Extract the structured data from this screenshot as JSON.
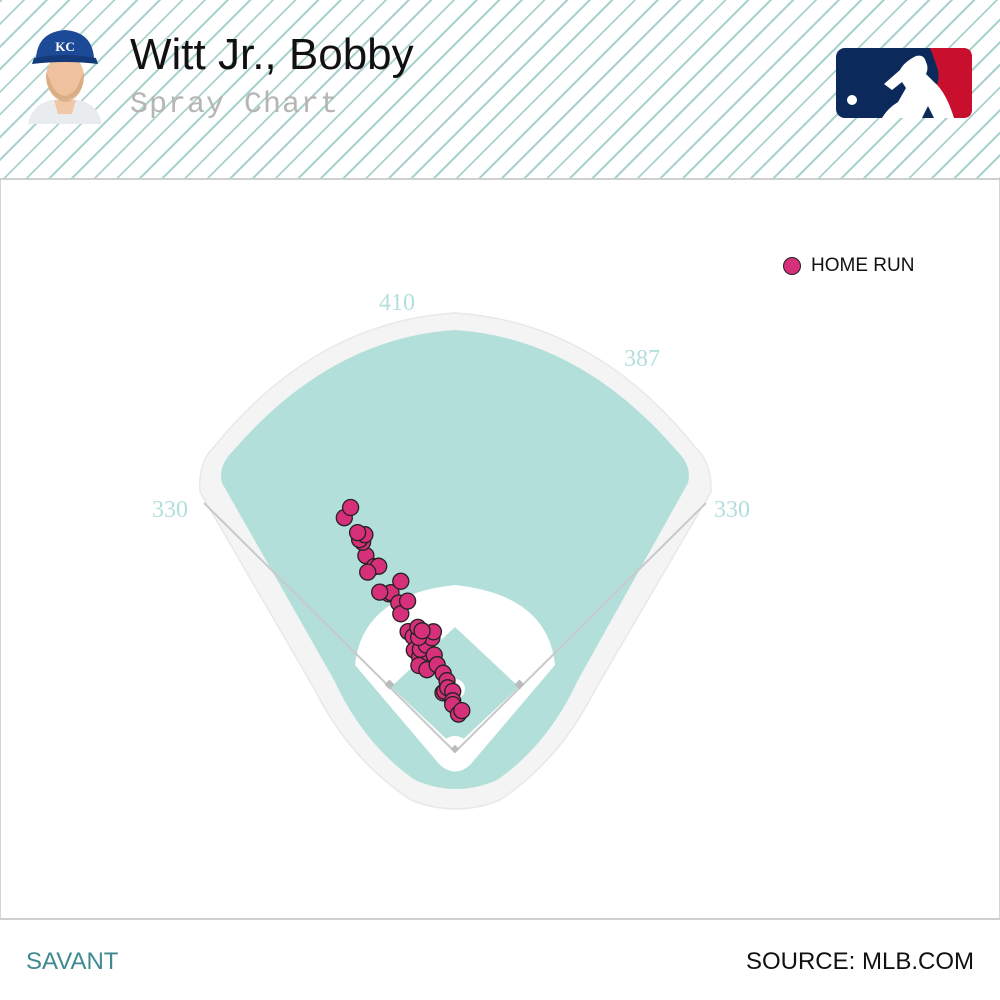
{
  "header": {
    "player_name": "Witt Jr., Bobby",
    "subtitle": "Spray Chart",
    "team_cap_letters": "KC",
    "logo": "mlb-logo"
  },
  "legend": {
    "label": "HOME RUN",
    "color": "#d6307a"
  },
  "field": {
    "distances": {
      "left": "330",
      "left_center": "",
      "center": "410",
      "right_center": "387",
      "right": "330"
    },
    "colors": {
      "turf": "#b3dfdb",
      "dirt_outline": "#ededed",
      "warning_track": "#f4f4f4"
    }
  },
  "chart_data": {
    "type": "scatter",
    "title": "Spray Chart",
    "series": [
      {
        "name": "HOME RUN",
        "color": "#d6307a"
      }
    ],
    "points_pct": [
      [
        -44.1,
        29.5
      ],
      [
        -35.5,
        25.6
      ],
      [
        -32.2,
        24.9
      ],
      [
        -30.4,
        26.1
      ],
      [
        -26.4,
        21.9
      ],
      [
        -25.5,
        22.7
      ],
      [
        -22.4,
        22.1
      ],
      [
        -21.6,
        20.0
      ],
      [
        -18.7,
        17.5
      ],
      [
        -16.7,
        17.5
      ],
      [
        -16.2,
        14.6
      ],
      [
        -14.1,
        14.2
      ],
      [
        -13.8,
        16.2
      ],
      [
        -14.4,
        12.0
      ],
      [
        -11.4,
        18.6
      ],
      [
        -11.2,
        12.9
      ],
      [
        -8.3,
        18.1
      ],
      [
        -7.1,
        16.5
      ],
      [
        -9.2,
        21.6
      ],
      [
        -8.6,
        23.4
      ],
      [
        -18.9,
        24.6
      ],
      [
        -21.6,
        27.7
      ],
      [
        -36.8,
        28.0
      ],
      [
        -38.0,
        27.9
      ],
      [
        -41.6,
        33.4
      ],
      [
        -35.9,
        30.3
      ],
      [
        -38.8,
        29.1
      ],
      [
        -34.8,
        22.1
      ],
      [
        -30.0,
        20.2
      ],
      [
        -14.5,
        18.6
      ],
      [
        -14.8,
        20.8
      ],
      [
        -13.1,
        21.0
      ],
      [
        -4.8,
        11.2
      ],
      [
        -4.1,
        12.0
      ],
      [
        -4.7,
        15.9
      ],
      [
        -3.2,
        15.0
      ],
      [
        -2.9,
        13.5
      ],
      [
        -0.9,
        13.8
      ],
      [
        -0.9,
        11.6
      ],
      [
        -0.9,
        10.7
      ],
      [
        1.4,
        9.8
      ],
      [
        2.7,
        11.4
      ]
    ],
    "note": "points_pct: home runs estimated from the image, as percent of the distance from home plate to the outfield wall, left-field foul line at [-100,0], center field at [0,100]"
  },
  "footer": {
    "brand": "SAVANT",
    "source": "SOURCE: MLB.COM"
  }
}
